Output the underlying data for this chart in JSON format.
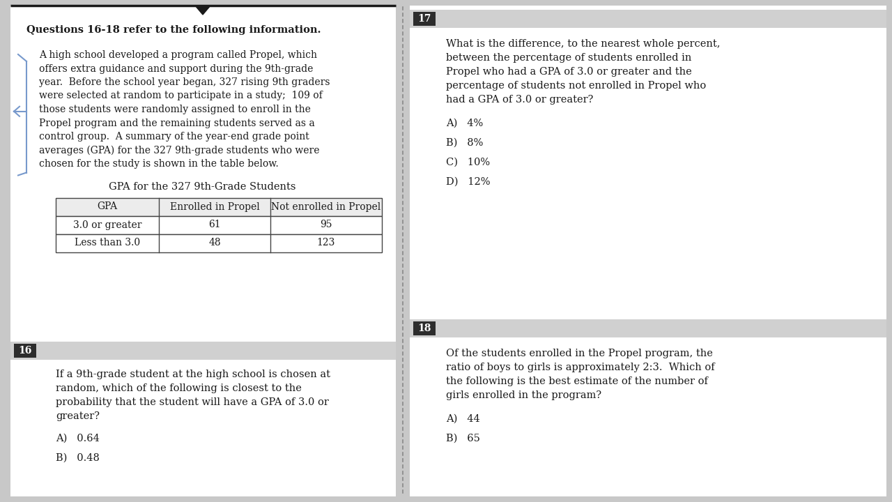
{
  "bg_color": "#c8c8c8",
  "left_panel_bg": "#ffffff",
  "right_panel_bg": "#ffffff",
  "question_num_bg": "#2d2d2d",
  "question_num_color": "#ffffff",
  "section_header_bg": "#d0d0d0",
  "text_color": "#1a1a1a",
  "bold_header": "Questions 16-18 refer to the following information.",
  "passage_lines": [
    "A high school developed a program called Propel, which",
    "offers extra guidance and support during the 9th-grade",
    "year.  Before the school year began, 327 rising 9th graders",
    "were selected at random to participate in a study;  109 of",
    "those students were randomly assigned to enroll in the",
    "Propel program and the remaining students served as a",
    "control group.  A summary of the year-end grade point",
    "averages (GPA) for the 327 9th-grade students who were",
    "chosen for the study is shown in the table below."
  ],
  "table_title": "GPA for the 327 9th-Grade Students",
  "table_headers": [
    "GPA",
    "Enrolled in Propel",
    "Not enrolled in Propel"
  ],
  "table_row1": [
    "3.0 or greater",
    "61",
    "95"
  ],
  "table_row2": [
    "Less than 3.0",
    "48",
    "123"
  ],
  "q16_num": "16",
  "q16_text_lines": [
    "If a 9th-grade student at the high school is chosen at",
    "random, which of the following is closest to the",
    "probability that the student will have a GPA of 3.0 or",
    "greater?"
  ],
  "q16_choices": [
    "A)   0.64",
    "B)   0.48"
  ],
  "q17_num": "17",
  "q17_text_lines": [
    "What is the difference, to the nearest whole percent,",
    "between the percentage of students enrolled in",
    "Propel who had a GPA of 3.0 or greater and the",
    "percentage of students not enrolled in Propel who",
    "had a GPA of 3.0 or greater?"
  ],
  "q17_choices": [
    "A)   4%",
    "B)   8%",
    "C)   10%",
    "D)   12%"
  ],
  "q18_num": "18",
  "q18_text_lines": [
    "Of the students enrolled in the Propel program, the",
    "ratio of boys to girls is approximately 2:3.  Which of",
    "the following is the best estimate of the number of",
    "girls enrolled in the program?"
  ],
  "q18_choices": [
    "A)   44",
    "B)   65"
  ],
  "bracket_color": "#7799cc"
}
